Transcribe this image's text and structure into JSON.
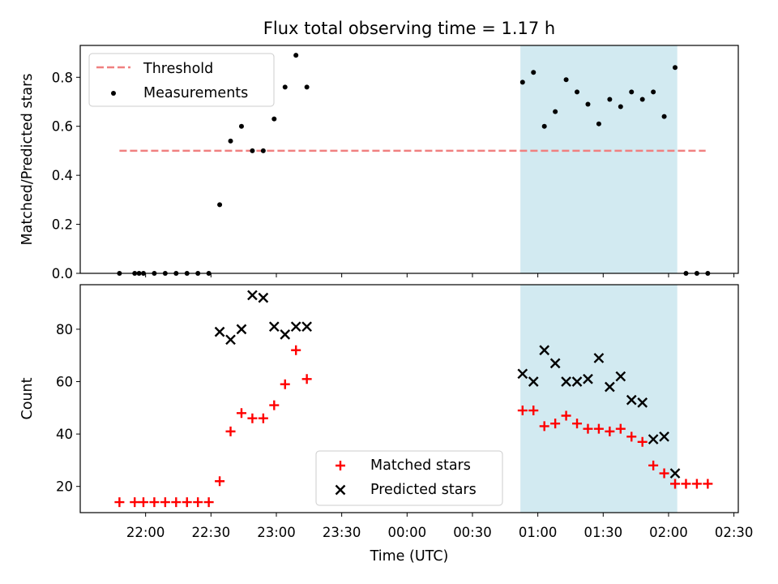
{
  "chart_data": {
    "title": "Flux total observing time = 1.17 h",
    "xlabel": "Time (UTC)",
    "x_unit": "hours after 21:30 UTC",
    "x_ticks": [
      "22:00",
      "22:30",
      "23:00",
      "23:30",
      "00:00",
      "00:30",
      "01:00",
      "01:30",
      "02:00",
      "02:30"
    ],
    "xlim": [
      "21:30",
      "02:32"
    ],
    "shaded_interval": {
      "start": "00:52",
      "end": "02:04",
      "color": "#add8e6"
    },
    "panels": [
      {
        "type": "scatter",
        "ylabel": "Matched/Predicted stars",
        "ylim": [
          0,
          0.93
        ],
        "y_ticks": [
          "0.0",
          "0.2",
          "0.4",
          "0.6",
          "0.8"
        ],
        "legend": {
          "placement": "top-left",
          "entries": [
            "Threshold",
            "Measurements"
          ]
        },
        "series": [
          {
            "name": "Threshold",
            "style": "dashed-line",
            "color": "#f08080",
            "x": [
              "21:48",
              "02:17"
            ],
            "y": [
              0.5,
              0.5
            ]
          },
          {
            "name": "Measurements",
            "style": "dot",
            "color": "#000000",
            "x": [
              "21:48",
              "21:55",
              "21:57",
              "21:59",
              "22:04",
              "22:09",
              "22:14",
              "22:19",
              "22:24",
              "22:29",
              "22:34",
              "22:39",
              "22:44",
              "22:49",
              "22:54",
              "22:59",
              "23:04",
              "23:09",
              "23:14",
              "00:53",
              "00:58",
              "01:03",
              "01:08",
              "01:13",
              "01:18",
              "01:23",
              "01:28",
              "01:33",
              "01:38",
              "01:43",
              "01:48",
              "01:53",
              "01:58",
              "02:03",
              "02:08",
              "02:13",
              "02:18"
            ],
            "y": [
              0.0,
              0.0,
              0.0,
              0.0,
              0.0,
              0.0,
              0.0,
              0.0,
              0.0,
              0.0,
              0.28,
              0.54,
              0.6,
              0.5,
              0.5,
              0.63,
              0.76,
              0.89,
              0.76,
              0.78,
              0.82,
              0.6,
              0.66,
              0.79,
              0.74,
              0.69,
              0.61,
              0.71,
              0.68,
              0.74,
              0.71,
              0.74,
              0.64,
              0.84,
              0.0,
              0.0,
              0.0
            ]
          }
        ]
      },
      {
        "type": "scatter",
        "ylabel": "Count",
        "ylim": [
          10,
          97
        ],
        "y_ticks": [
          "20",
          "40",
          "60",
          "80"
        ],
        "legend": {
          "placement": "bottom-center",
          "entries": [
            "Matched stars",
            "Predicted stars"
          ]
        },
        "series": [
          {
            "name": "Matched stars",
            "marker": "plus",
            "color": "#ff0000",
            "x": [
              "21:48",
              "21:55",
              "21:59",
              "22:04",
              "22:09",
              "22:14",
              "22:19",
              "22:24",
              "22:29",
              "22:34",
              "22:39",
              "22:44",
              "22:49",
              "22:54",
              "22:59",
              "23:04",
              "23:09",
              "23:14",
              "00:53",
              "00:58",
              "01:03",
              "01:08",
              "01:13",
              "01:18",
              "01:23",
              "01:28",
              "01:33",
              "01:38",
              "01:43",
              "01:48",
              "01:53",
              "01:58",
              "02:03",
              "02:08",
              "02:13",
              "02:18"
            ],
            "y": [
              14,
              14,
              14,
              14,
              14,
              14,
              14,
              14,
              14,
              22,
              41,
              48,
              46,
              46,
              51,
              59,
              72,
              61,
              49,
              49,
              43,
              44,
              47,
              44,
              42,
              42,
              41,
              42,
              39,
              37,
              28,
              25,
              21,
              21,
              21,
              21
            ]
          },
          {
            "name": "Predicted stars",
            "marker": "x",
            "color": "#000000",
            "x": [
              "22:34",
              "22:39",
              "22:44",
              "22:49",
              "22:54",
              "22:59",
              "23:04",
              "23:09",
              "23:14",
              "00:53",
              "00:58",
              "01:03",
              "01:08",
              "01:13",
              "01:18",
              "01:23",
              "01:28",
              "01:33",
              "01:38",
              "01:43",
              "01:48",
              "01:53",
              "01:58",
              "02:03"
            ],
            "y": [
              79,
              76,
              80,
              93,
              92,
              81,
              78,
              81,
              81,
              63,
              60,
              72,
              67,
              60,
              60,
              61,
              69,
              58,
              62,
              53,
              52,
              38,
              39,
              25
            ]
          }
        ]
      }
    ]
  }
}
